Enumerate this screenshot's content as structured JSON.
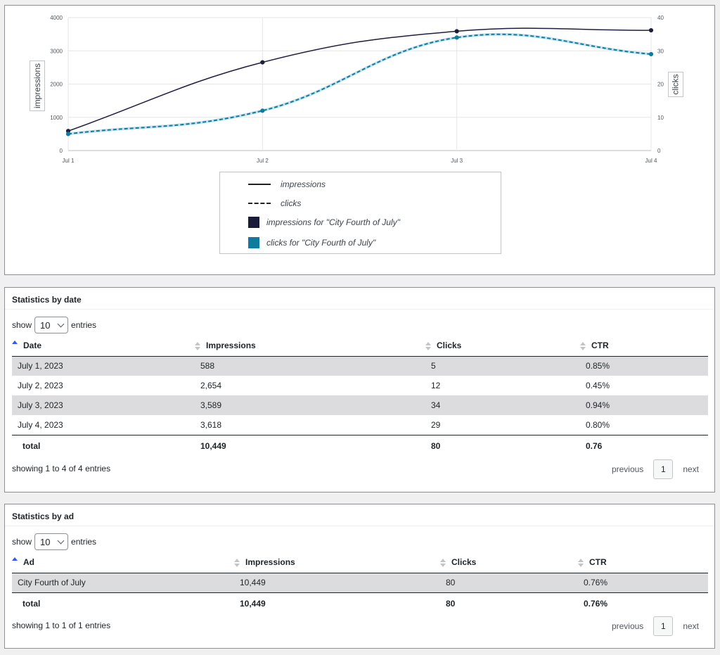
{
  "chart_data": {
    "type": "line",
    "x": [
      "Jul 1",
      "Jul 2",
      "Jul 3",
      "Jul 4"
    ],
    "series": [
      {
        "name": "impressions",
        "axis": "left",
        "values": [
          588,
          2654,
          3589,
          3618
        ],
        "color": "#1e1e3f",
        "dash": false
      },
      {
        "name": "clicks",
        "axis": "right",
        "values": [
          5,
          12,
          34,
          29
        ],
        "color": "#0e7ca0",
        "dash": true
      }
    ],
    "ylabel": "impressions",
    "y2label": "clicks",
    "ylim": [
      0,
      4000
    ],
    "y2lim": [
      0,
      40
    ],
    "yticks": [
      "0",
      "1000",
      "2000",
      "3000",
      "4000"
    ],
    "y2ticks": [
      "0",
      "10",
      "20",
      "30",
      "40"
    ],
    "grid": true,
    "legend": {
      "position": "bottom",
      "items": [
        {
          "label": "impressions",
          "kind": "line"
        },
        {
          "label": "clicks",
          "kind": "dashed"
        },
        {
          "label": "impressions for \"City Fourth of July\"",
          "kind": "swatch",
          "color": "#1a1a3a"
        },
        {
          "label": "clicks for \"City Fourth of July\"",
          "kind": "swatch",
          "color": "#0e7ca0"
        }
      ]
    }
  },
  "date_table": {
    "title": "Statistics by date",
    "show_label": "show",
    "entries_label": "entries",
    "page_length": "10",
    "columns": [
      "Date",
      "Impressions",
      "Clicks",
      "CTR"
    ],
    "rows": [
      [
        "July 1, 2023",
        "588",
        "5",
        "0.85%"
      ],
      [
        "July 2, 2023",
        "2,654",
        "12",
        "0.45%"
      ],
      [
        "July 3, 2023",
        "3,589",
        "34",
        "0.94%"
      ],
      [
        "July 4, 2023",
        "3,618",
        "29",
        "0.80%"
      ]
    ],
    "total": [
      "total",
      "10,449",
      "80",
      "0.76"
    ],
    "info": "showing 1 to 4 of 4 entries",
    "previous": "previous",
    "page": "1",
    "next": "next"
  },
  "ad_table": {
    "title": "Statistics by ad",
    "show_label": "show",
    "entries_label": "entries",
    "page_length": "10",
    "columns": [
      "Ad",
      "Impressions",
      "Clicks",
      "CTR"
    ],
    "rows": [
      [
        "City Fourth of July",
        "10,449",
        "80",
        "0.76%"
      ]
    ],
    "total": [
      "total",
      "10,449",
      "80",
      "0.76%"
    ],
    "info": "showing 1 to 1 of 1 entries",
    "previous": "previous",
    "page": "1",
    "next": "next"
  }
}
